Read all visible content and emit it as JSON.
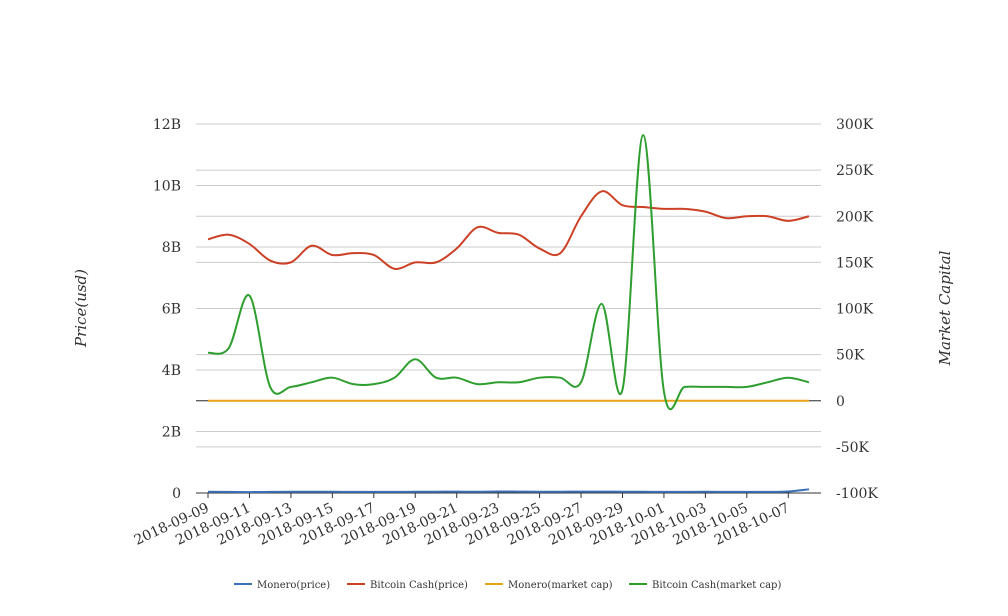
{
  "chart_data": {
    "type": "line",
    "title": "",
    "ylabel_left": "Price(usd)",
    "ylabel_right": "Market Capital",
    "ylim_left": [
      0,
      12000000000
    ],
    "ylim_right": [
      -100000,
      300000
    ],
    "yticks_left": [
      "0",
      "2B",
      "4B",
      "6B",
      "8B",
      "10B",
      "12B"
    ],
    "yticks_right": [
      "-100K",
      "-50K",
      "0",
      "50K",
      "100K",
      "150K",
      "200K",
      "250K",
      "300K"
    ],
    "x": [
      "2018-09-09",
      "2018-09-10",
      "2018-09-11",
      "2018-09-12",
      "2018-09-13",
      "2018-09-14",
      "2018-09-15",
      "2018-09-16",
      "2018-09-17",
      "2018-09-18",
      "2018-09-19",
      "2018-09-20",
      "2018-09-21",
      "2018-09-22",
      "2018-09-23",
      "2018-09-24",
      "2018-09-25",
      "2018-09-26",
      "2018-09-27",
      "2018-09-28",
      "2018-09-29",
      "2018-09-30",
      "2018-10-01",
      "2018-10-02",
      "2018-10-03",
      "2018-10-04",
      "2018-10-05",
      "2018-10-06",
      "2018-10-07",
      "2018-10-08"
    ],
    "x_tick_labels": [
      "2018-09-09",
      "2018-09-11",
      "2018-09-13",
      "2018-09-15",
      "2018-09-17",
      "2018-09-19",
      "2018-09-21",
      "2018-09-23",
      "2018-09-25",
      "2018-09-27",
      "2018-09-29",
      "2018-10-01",
      "2018-10-03",
      "2018-10-05",
      "2018-10-07"
    ],
    "grid": true,
    "legend_position": "bottom-center",
    "series": [
      {
        "name": "Monero(price)",
        "axis": "left",
        "color": "#3a6fb5",
        "values": [
          40000000,
          35000000,
          30000000,
          35000000,
          40000000,
          42000000,
          40000000,
          35000000,
          35000000,
          37000000,
          40000000,
          42000000,
          45000000,
          40000000,
          50000000,
          45000000,
          40000000,
          42000000,
          45000000,
          45000000,
          42000000,
          40000000,
          35000000,
          37000000,
          40000000,
          37000000,
          35000000,
          37000000,
          50000000,
          120000000
        ]
      },
      {
        "name": "Bitcoin Cash(price)",
        "axis": "right",
        "color": "#cc4125",
        "values": [
          175000,
          180000,
          170000,
          152000,
          150000,
          168000,
          158000,
          160000,
          158000,
          143000,
          150000,
          150000,
          165000,
          188000,
          182000,
          180000,
          165000,
          160000,
          200000,
          227000,
          212000,
          210000,
          208000,
          208000,
          205000,
          198000,
          200000,
          200000,
          195000,
          200000
        ]
      },
      {
        "name": "Monero(market cap)",
        "axis": "right",
        "color": "#e8a317",
        "values": [
          0,
          0,
          0,
          0,
          0,
          0,
          0,
          0,
          0,
          0,
          0,
          0,
          0,
          0,
          0,
          0,
          0,
          0,
          0,
          0,
          0,
          0,
          0,
          0,
          0,
          0,
          0,
          0,
          0,
          0
        ]
      },
      {
        "name": "Bitcoin Cash(market cap)",
        "axis": "right",
        "color": "#2e9e2e",
        "values": [
          52000,
          57000,
          114000,
          15000,
          15000,
          20000,
          25000,
          18000,
          18000,
          25000,
          45000,
          25000,
          25000,
          18000,
          20000,
          20000,
          25000,
          25000,
          20000,
          105000,
          12000,
          288000,
          10000,
          15000,
          15000,
          15000,
          15000,
          20000,
          25000,
          20000
        ]
      }
    ]
  }
}
